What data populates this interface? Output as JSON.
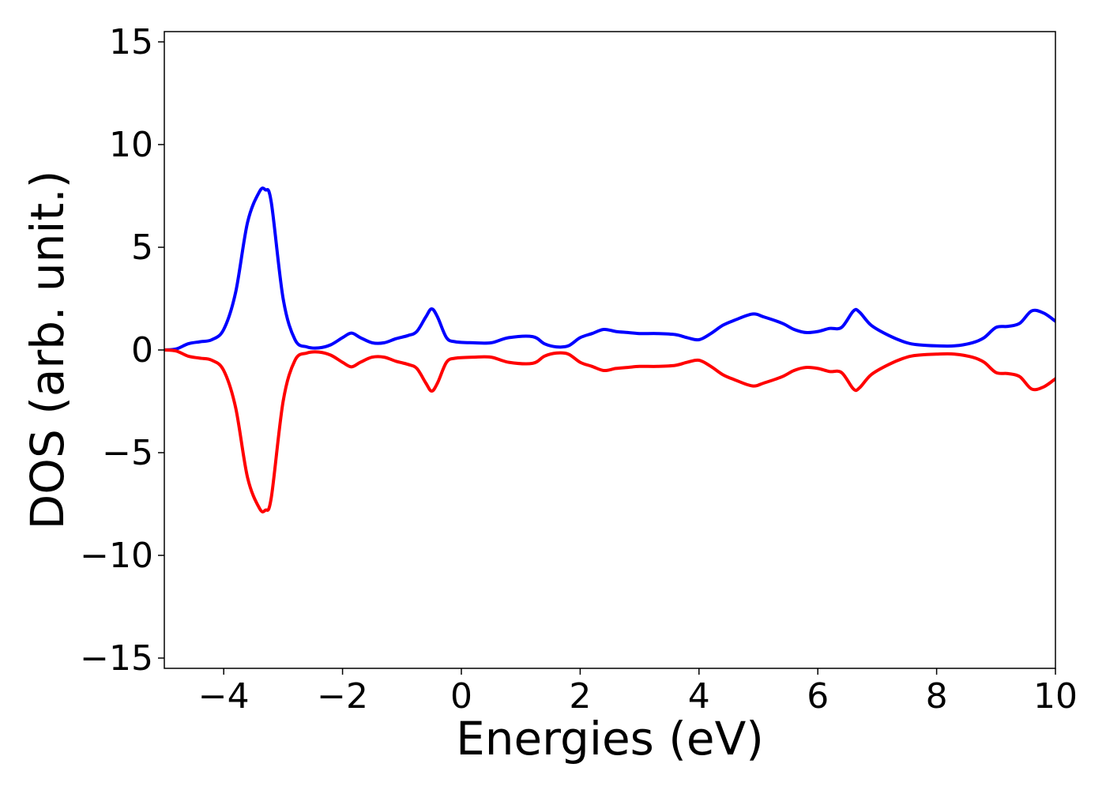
{
  "chart_data": {
    "type": "line",
    "xlabel": "Energies (eV)",
    "ylabel": "DOS (arb. unit.)",
    "xlim": [
      -5,
      10
    ],
    "ylim": [
      -15.5,
      15.5
    ],
    "xticks": [
      {
        "value": -4,
        "label": "−4"
      },
      {
        "value": -2,
        "label": "−2"
      },
      {
        "value": 0,
        "label": "0"
      },
      {
        "value": 2,
        "label": "2"
      },
      {
        "value": 4,
        "label": "4"
      },
      {
        "value": 6,
        "label": "6"
      },
      {
        "value": 8,
        "label": "8"
      },
      {
        "value": 10,
        "label": "10"
      }
    ],
    "yticks": [
      {
        "value": 15,
        "label": "15"
      },
      {
        "value": 10,
        "label": "10"
      },
      {
        "value": 5,
        "label": "5"
      },
      {
        "value": 0,
        "label": "0"
      },
      {
        "value": -5,
        "label": "−5"
      },
      {
        "value": -10,
        "label": "−10"
      },
      {
        "value": -15,
        "label": "−15"
      }
    ],
    "grid": false,
    "series": [
      {
        "color": "#0000ff",
        "points": [
          [
            -5,
            0.0
          ],
          [
            -4.8,
            0.05
          ],
          [
            -4.6,
            0.3
          ],
          [
            -4.4,
            0.4
          ],
          [
            -4.2,
            0.5
          ],
          [
            -4.0,
            1.0
          ],
          [
            -3.8,
            2.8
          ],
          [
            -3.6,
            6.2
          ],
          [
            -3.4,
            7.7
          ],
          [
            -3.3,
            7.8
          ],
          [
            -3.2,
            7.2
          ],
          [
            -3.0,
            2.5
          ],
          [
            -2.8,
            0.5
          ],
          [
            -2.6,
            0.15
          ],
          [
            -2.4,
            0.1
          ],
          [
            -2.2,
            0.25
          ],
          [
            -2.0,
            0.6
          ],
          [
            -1.85,
            0.82
          ],
          [
            -1.7,
            0.6
          ],
          [
            -1.5,
            0.35
          ],
          [
            -1.3,
            0.35
          ],
          [
            -1.1,
            0.55
          ],
          [
            -0.9,
            0.7
          ],
          [
            -0.75,
            0.9
          ],
          [
            -0.6,
            1.6
          ],
          [
            -0.5,
            2.0
          ],
          [
            -0.4,
            1.6
          ],
          [
            -0.25,
            0.6
          ],
          [
            -0.1,
            0.4
          ],
          [
            0.2,
            0.35
          ],
          [
            0.5,
            0.35
          ],
          [
            0.8,
            0.6
          ],
          [
            1.2,
            0.65
          ],
          [
            1.4,
            0.3
          ],
          [
            1.6,
            0.15
          ],
          [
            1.8,
            0.2
          ],
          [
            2.0,
            0.6
          ],
          [
            2.2,
            0.8
          ],
          [
            2.4,
            1.0
          ],
          [
            2.6,
            0.9
          ],
          [
            2.8,
            0.85
          ],
          [
            3.0,
            0.8
          ],
          [
            3.3,
            0.8
          ],
          [
            3.6,
            0.75
          ],
          [
            3.8,
            0.6
          ],
          [
            4.0,
            0.5
          ],
          [
            4.2,
            0.8
          ],
          [
            4.4,
            1.2
          ],
          [
            4.6,
            1.45
          ],
          [
            4.9,
            1.75
          ],
          [
            5.1,
            1.6
          ],
          [
            5.4,
            1.3
          ],
          [
            5.6,
            1.0
          ],
          [
            5.8,
            0.85
          ],
          [
            6.0,
            0.9
          ],
          [
            6.2,
            1.05
          ],
          [
            6.4,
            1.1
          ],
          [
            6.6,
            1.9
          ],
          [
            6.7,
            1.85
          ],
          [
            6.9,
            1.2
          ],
          [
            7.2,
            0.7
          ],
          [
            7.5,
            0.35
          ],
          [
            7.7,
            0.25
          ],
          [
            8.0,
            0.2
          ],
          [
            8.3,
            0.2
          ],
          [
            8.6,
            0.35
          ],
          [
            8.8,
            0.6
          ],
          [
            9.0,
            1.1
          ],
          [
            9.2,
            1.15
          ],
          [
            9.4,
            1.3
          ],
          [
            9.6,
            1.9
          ],
          [
            9.8,
            1.8
          ],
          [
            10.0,
            1.4
          ]
        ]
      },
      {
        "color": "#ff0000",
        "points": [
          [
            -5,
            0.0
          ],
          [
            -4.8,
            -0.05
          ],
          [
            -4.6,
            -0.3
          ],
          [
            -4.4,
            -0.4
          ],
          [
            -4.2,
            -0.5
          ],
          [
            -4.0,
            -1.0
          ],
          [
            -3.8,
            -2.8
          ],
          [
            -3.6,
            -6.2
          ],
          [
            -3.4,
            -7.7
          ],
          [
            -3.3,
            -7.8
          ],
          [
            -3.2,
            -7.2
          ],
          [
            -3.0,
            -2.5
          ],
          [
            -2.8,
            -0.5
          ],
          [
            -2.6,
            -0.15
          ],
          [
            -2.4,
            -0.1
          ],
          [
            -2.2,
            -0.25
          ],
          [
            -2.0,
            -0.6
          ],
          [
            -1.85,
            -0.82
          ],
          [
            -1.7,
            -0.6
          ],
          [
            -1.5,
            -0.35
          ],
          [
            -1.3,
            -0.35
          ],
          [
            -1.1,
            -0.55
          ],
          [
            -0.9,
            -0.7
          ],
          [
            -0.75,
            -0.9
          ],
          [
            -0.6,
            -1.6
          ],
          [
            -0.5,
            -2.0
          ],
          [
            -0.4,
            -1.6
          ],
          [
            -0.25,
            -0.6
          ],
          [
            -0.1,
            -0.4
          ],
          [
            0.2,
            -0.35
          ],
          [
            0.5,
            -0.35
          ],
          [
            0.8,
            -0.6
          ],
          [
            1.2,
            -0.65
          ],
          [
            1.4,
            -0.3
          ],
          [
            1.6,
            -0.15
          ],
          [
            1.8,
            -0.2
          ],
          [
            2.0,
            -0.6
          ],
          [
            2.2,
            -0.8
          ],
          [
            2.4,
            -1.0
          ],
          [
            2.6,
            -0.9
          ],
          [
            2.8,
            -0.85
          ],
          [
            3.0,
            -0.8
          ],
          [
            3.3,
            -0.8
          ],
          [
            3.6,
            -0.75
          ],
          [
            3.8,
            -0.6
          ],
          [
            4.0,
            -0.5
          ],
          [
            4.2,
            -0.8
          ],
          [
            4.4,
            -1.2
          ],
          [
            4.6,
            -1.45
          ],
          [
            4.9,
            -1.75
          ],
          [
            5.1,
            -1.6
          ],
          [
            5.4,
            -1.3
          ],
          [
            5.6,
            -1.0
          ],
          [
            5.8,
            -0.85
          ],
          [
            6.0,
            -0.9
          ],
          [
            6.2,
            -1.05
          ],
          [
            6.4,
            -1.1
          ],
          [
            6.6,
            -1.9
          ],
          [
            6.7,
            -1.85
          ],
          [
            6.9,
            -1.2
          ],
          [
            7.2,
            -0.7
          ],
          [
            7.5,
            -0.35
          ],
          [
            7.7,
            -0.25
          ],
          [
            8.0,
            -0.2
          ],
          [
            8.3,
            -0.2
          ],
          [
            8.6,
            -0.35
          ],
          [
            8.8,
            -0.6
          ],
          [
            9.0,
            -1.1
          ],
          [
            9.2,
            -1.15
          ],
          [
            9.4,
            -1.3
          ],
          [
            9.6,
            -1.9
          ],
          [
            9.8,
            -1.8
          ],
          [
            10.0,
            -1.4
          ]
        ]
      }
    ]
  }
}
